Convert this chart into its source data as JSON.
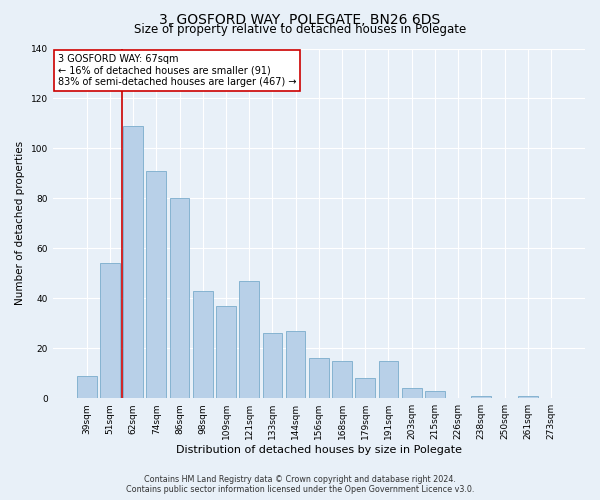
{
  "title": "3, GOSFORD WAY, POLEGATE, BN26 6DS",
  "subtitle": "Size of property relative to detached houses in Polegate",
  "xlabel": "Distribution of detached houses by size in Polegate",
  "ylabel": "Number of detached properties",
  "categories": [
    "39sqm",
    "51sqm",
    "62sqm",
    "74sqm",
    "86sqm",
    "98sqm",
    "109sqm",
    "121sqm",
    "133sqm",
    "144sqm",
    "156sqm",
    "168sqm",
    "179sqm",
    "191sqm",
    "203sqm",
    "215sqm",
    "226sqm",
    "238sqm",
    "250sqm",
    "261sqm",
    "273sqm"
  ],
  "values": [
    9,
    54,
    109,
    91,
    80,
    43,
    37,
    47,
    26,
    27,
    16,
    15,
    8,
    15,
    4,
    3,
    0,
    1,
    0,
    1,
    0
  ],
  "bar_color": "#b8d0e8",
  "bar_edge_color": "#7aaccc",
  "vline_index": 2,
  "vline_color": "#cc0000",
  "annotation_title": "3 GOSFORD WAY: 67sqm",
  "annotation_line1": "← 16% of detached houses are smaller (91)",
  "annotation_line2": "83% of semi-detached houses are larger (467) →",
  "annotation_box_facecolor": "#ffffff",
  "annotation_box_edgecolor": "#cc0000",
  "ylim": [
    0,
    140
  ],
  "yticks": [
    0,
    20,
    40,
    60,
    80,
    100,
    120,
    140
  ],
  "bg_color": "#e8f0f8",
  "plot_bg_color": "#e8f0f8",
  "footer1": "Contains HM Land Registry data © Crown copyright and database right 2024.",
  "footer2": "Contains public sector information licensed under the Open Government Licence v3.0.",
  "title_fontsize": 10,
  "subtitle_fontsize": 8.5,
  "xlabel_fontsize": 8,
  "ylabel_fontsize": 7.5,
  "tick_fontsize": 6.5,
  "annotation_fontsize": 7,
  "footer_fontsize": 5.8
}
